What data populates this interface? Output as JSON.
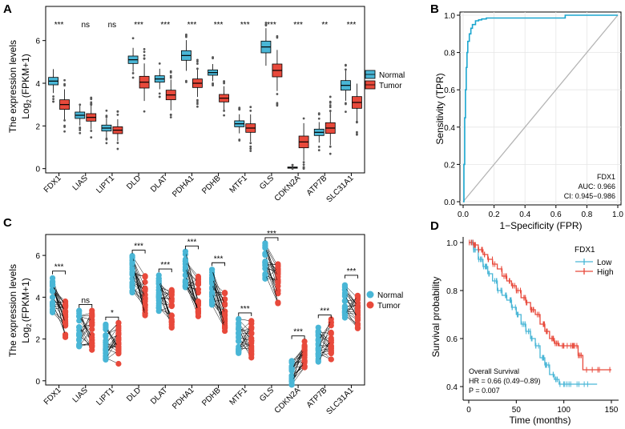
{
  "panels": {
    "A": "A",
    "B": "B",
    "C": "C",
    "D": "D"
  },
  "colors": {
    "normal": "#49b6d6",
    "tumor": "#e8493b",
    "low": "#49b6d6",
    "high": "#e8493b",
    "roc": "#1aa6cf",
    "diag": "#b5b5b5"
  },
  "chart_data": [
    {
      "id": "A",
      "type": "box",
      "ylabel_line1": "The expression levels",
      "ylabel_line2": "Log",
      "ylabel_sub": "2",
      "ylabel_rest": "(FPKM+1)",
      "yticks": [
        "0",
        "2",
        "4",
        "6"
      ],
      "ylim": [
        -0.2,
        7.6
      ],
      "legend": [
        "Normal",
        "Tumor"
      ],
      "categories": [
        "FDX1",
        "LIAS",
        "LIPT1",
        "DLD",
        "DLAT",
        "PDHA1",
        "PDHB",
        "MTF1",
        "GLS",
        "CDKN2A",
        "ATP7B",
        "SLC31A1"
      ],
      "significance": [
        "***",
        "ns",
        "ns",
        "***",
        "***",
        "***",
        "***",
        "***",
        "***",
        "***",
        "**",
        "***"
      ],
      "series": [
        {
          "name": "Normal",
          "median": [
            4.1,
            2.5,
            1.9,
            5.1,
            4.2,
            5.3,
            4.5,
            2.1,
            5.7,
            0.05,
            1.7,
            3.9
          ]
        },
        {
          "name": "Tumor",
          "median": [
            3.0,
            2.4,
            1.8,
            4.05,
            3.45,
            4.0,
            3.3,
            1.9,
            4.6,
            1.25,
            1.9,
            3.1
          ]
        }
      ]
    },
    {
      "id": "B",
      "type": "roc",
      "xlabel": "1−Specificity (FPR)",
      "ylabel": "Sensitivity (TPR)",
      "ticks": [
        "0.0",
        "0.2",
        "0.4",
        "0.6",
        "0.8",
        "1.0"
      ],
      "gene": "FDX1",
      "auc": "AUC: 0.966",
      "ci": "CI: 0.945−0.986",
      "fpr": [
        0,
        0.005,
        0.01,
        0.015,
        0.02,
        0.025,
        0.03,
        0.04,
        0.05,
        0.06,
        0.08,
        0.1,
        0.12,
        0.15,
        0.2,
        0.3,
        0.65,
        0.66,
        1.0
      ],
      "tpr": [
        0,
        0.2,
        0.45,
        0.6,
        0.72,
        0.8,
        0.86,
        0.9,
        0.93,
        0.95,
        0.97,
        0.975,
        0.98,
        0.985,
        0.985,
        0.985,
        0.985,
        1.0,
        1.0
      ]
    },
    {
      "id": "C",
      "type": "paired",
      "ylabel_line1": "The expression levels",
      "ylabel_line2": "Log",
      "ylabel_sub": "2",
      "ylabel_rest": "(FPKM+1)",
      "yticks": [
        "0",
        "2",
        "4",
        "6"
      ],
      "legend": [
        "Normal",
        "Tumor"
      ],
      "categories": [
        "FDX1",
        "LIAS",
        "LIPT1",
        "DLD",
        "DLAT",
        "PDHA1",
        "PDHB",
        "MTF1",
        "GLS",
        "CDKN2A",
        "ATP7B",
        "SLC31A1"
      ],
      "significance": [
        "***",
        "ns",
        "*",
        "***",
        "***",
        "***",
        "***",
        "***",
        "***",
        "***",
        "***",
        "***"
      ],
      "normal_center": [
        4.1,
        2.5,
        1.9,
        5.1,
        4.2,
        5.3,
        4.5,
        2.1,
        5.7,
        0.4,
        1.7,
        3.9
      ],
      "tumor_center": [
        3.0,
        2.4,
        1.8,
        4.05,
        3.45,
        4.0,
        3.3,
        1.9,
        4.6,
        1.3,
        2.0,
        3.1
      ]
    },
    {
      "id": "D",
      "type": "survival",
      "xlabel": "Time (months)",
      "ylabel": "Survival probability",
      "xticks": [
        "0",
        "50",
        "100",
        "150"
      ],
      "yticks": [
        "0.4",
        "0.6",
        "0.8",
        "1.0"
      ],
      "legend_title": "FDX1",
      "legend": [
        "Low",
        "High"
      ],
      "annotation_title": "Overall Survival",
      "annotation_hr": "HR = 0.66 (0.49−0.89)",
      "annotation_p": "P = 0.007",
      "low": {
        "t": [
          0,
          5,
          10,
          15,
          20,
          25,
          30,
          35,
          40,
          45,
          50,
          55,
          60,
          65,
          70,
          75,
          80,
          85,
          90,
          95,
          100,
          110,
          120,
          135
        ],
        "s": [
          1.0,
          0.97,
          0.93,
          0.9,
          0.87,
          0.84,
          0.8,
          0.78,
          0.76,
          0.73,
          0.7,
          0.66,
          0.63,
          0.6,
          0.57,
          0.52,
          0.49,
          0.45,
          0.43,
          0.41,
          0.41,
          0.41,
          0.41,
          0.41
        ]
      },
      "high": {
        "t": [
          0,
          5,
          10,
          15,
          20,
          25,
          30,
          35,
          40,
          45,
          50,
          55,
          60,
          65,
          70,
          75,
          80,
          85,
          90,
          95,
          100,
          105,
          110,
          115,
          120,
          130,
          150
        ],
        "s": [
          1.0,
          0.99,
          0.97,
          0.95,
          0.93,
          0.91,
          0.89,
          0.86,
          0.84,
          0.82,
          0.8,
          0.77,
          0.75,
          0.72,
          0.7,
          0.66,
          0.63,
          0.6,
          0.58,
          0.57,
          0.57,
          0.57,
          0.57,
          0.53,
          0.47,
          0.47,
          0.47
        ]
      }
    }
  ]
}
